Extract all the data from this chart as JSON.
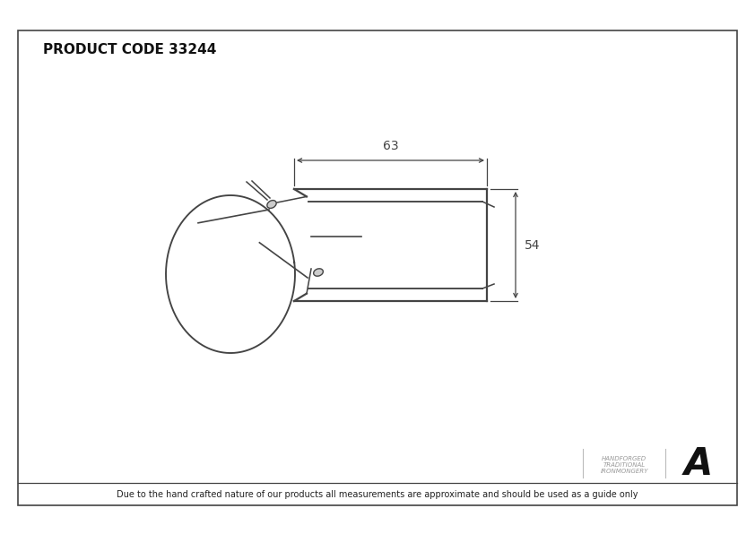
{
  "title": "PRODUCT CODE 33244",
  "title_fontsize": 11,
  "footer_text": "Due to the hand crafted nature of our products all measurements are approximate and should be used as a guide only",
  "footer_fontsize": 7,
  "bg_color": "#ffffff",
  "border_color": "#444444",
  "line_color": "#444444",
  "dim_color": "#444444",
  "logo_text1": "HANDFORGED",
  "logo_text2": "TRADITIONAL",
  "logo_text3": "IRONMONGERY",
  "dim_63": "63",
  "dim_54": "54",
  "dim_fontsize": 10
}
